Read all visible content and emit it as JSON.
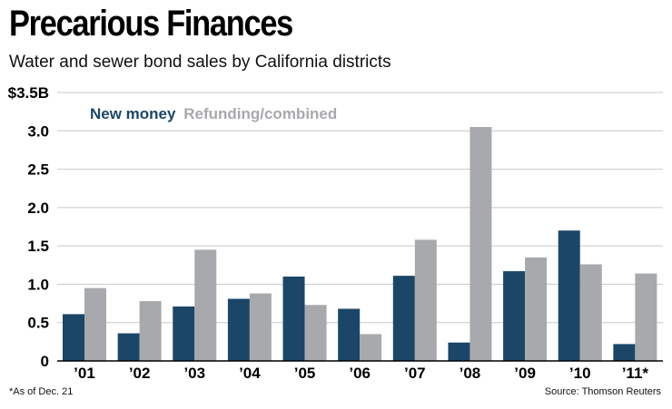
{
  "title": "Precarious Finances",
  "subtitle": "Water and sewer bond sales by California districts",
  "footnote": "*As of Dec. 21",
  "source": "Source: Thomson Reuters",
  "colors": {
    "new_money": "#1b4668",
    "refunding": "#a7a9ac",
    "axis": "#000000",
    "grid": "#c8c8c8"
  },
  "chart_data": {
    "type": "bar",
    "categories": [
      "’01",
      "’02",
      "’03",
      "’04",
      "’05",
      "’06",
      "’07",
      "’08",
      "’09",
      "’10",
      "’11*"
    ],
    "series": [
      {
        "name": "New money",
        "values": [
          0.61,
          0.36,
          0.71,
          0.81,
          1.1,
          0.68,
          1.11,
          0.24,
          1.17,
          1.7,
          0.22
        ]
      },
      {
        "name": "Refunding/combined",
        "values": [
          0.95,
          0.78,
          1.45,
          0.88,
          0.73,
          0.35,
          1.58,
          3.05,
          1.35,
          1.26,
          1.14
        ]
      }
    ],
    "ylim": [
      0,
      3.5
    ],
    "yticks": [
      0,
      0.5,
      1.0,
      1.5,
      2.0,
      2.5,
      3.0,
      3.5
    ],
    "ytick_labels": [
      "0",
      "0.5",
      "1.0",
      "1.5",
      "2.0",
      "2.5",
      "3.0",
      "$3.5B"
    ],
    "grid": true,
    "legend_placement": "top-left"
  }
}
